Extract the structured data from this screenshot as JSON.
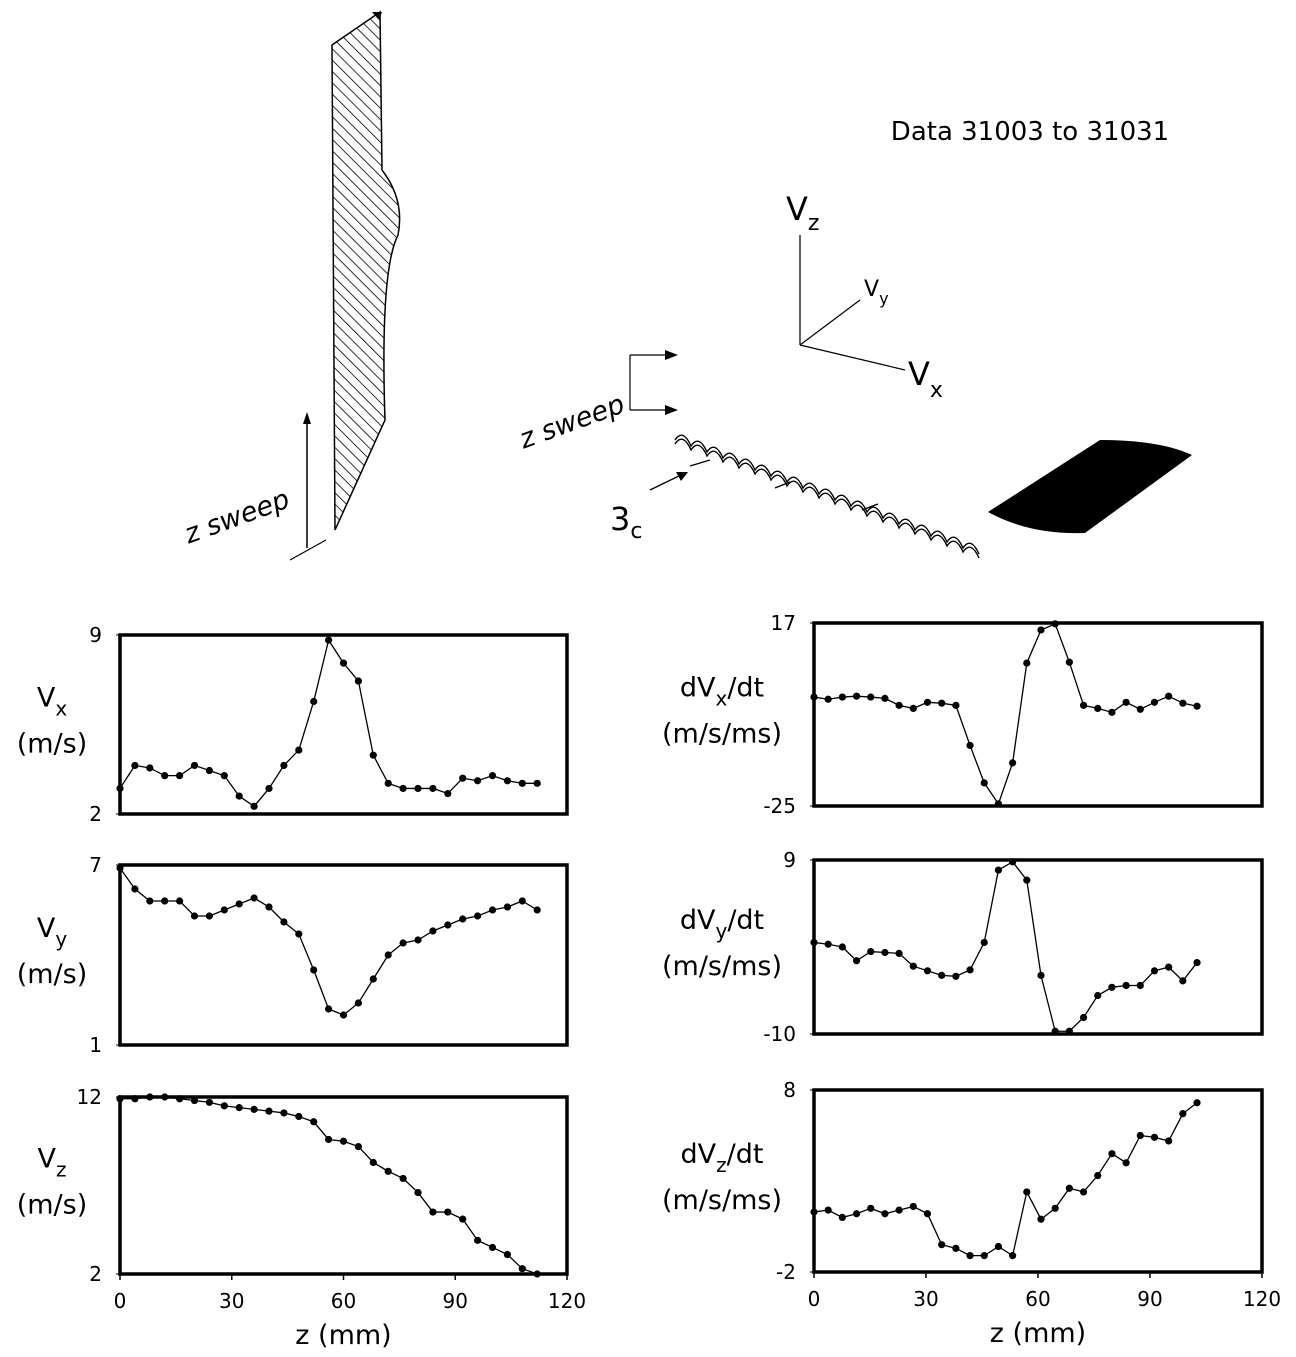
{
  "diagram": {
    "left_label": "z sweep",
    "right_label": "z sweep",
    "wake_label": "3",
    "wake_subscript": "c",
    "data_label": "Data 31003 to 31031",
    "axes": [
      {
        "base": "V",
        "sub": "z"
      },
      {
        "base": "V",
        "sub": "y"
      },
      {
        "base": "V",
        "sub": "x"
      }
    ]
  },
  "chart_data": [
    {
      "type": "line",
      "ylabel_parts": [
        "V",
        "x"
      ],
      "yunit": "(m/s)",
      "x": [
        0,
        4,
        8,
        12,
        16,
        20,
        24,
        28,
        32,
        36,
        40,
        44,
        48,
        52,
        56,
        60,
        64,
        68,
        72,
        76,
        80,
        84,
        88,
        92,
        96,
        100,
        104,
        108,
        112
      ],
      "values": [
        3.0,
        3.9,
        3.8,
        3.5,
        3.5,
        3.9,
        3.7,
        3.5,
        2.7,
        2.3,
        3.0,
        3.9,
        4.5,
        6.4,
        8.8,
        7.9,
        7.2,
        4.3,
        3.2,
        3.0,
        3.0,
        3.0,
        2.8,
        3.4,
        3.3,
        3.5,
        3.3,
        3.2,
        3.2
      ],
      "xlim": [
        0,
        120
      ],
      "ylim": [
        2,
        9
      ],
      "yticks": [
        2,
        9
      ]
    },
    {
      "type": "line",
      "ylabel_parts": [
        "V",
        "y"
      ],
      "yunit": "(m/s)",
      "x": [
        0,
        4,
        8,
        12,
        16,
        20,
        24,
        28,
        32,
        36,
        40,
        44,
        48,
        52,
        56,
        60,
        64,
        68,
        72,
        76,
        80,
        84,
        88,
        92,
        96,
        100,
        104,
        108,
        112
      ],
      "values": [
        6.9,
        6.2,
        5.8,
        5.8,
        5.8,
        5.3,
        5.3,
        5.5,
        5.7,
        5.9,
        5.6,
        5.1,
        4.7,
        3.5,
        2.2,
        2.0,
        2.4,
        3.2,
        4.0,
        4.4,
        4.5,
        4.8,
        5.0,
        5.2,
        5.3,
        5.5,
        5.6,
        5.8,
        5.5
      ],
      "xlim": [
        0,
        120
      ],
      "ylim": [
        1,
        7
      ],
      "yticks": [
        1,
        7
      ]
    },
    {
      "type": "line",
      "ylabel_parts": [
        "V",
        "z"
      ],
      "yunit": "(m/s)",
      "x": [
        0,
        4,
        8,
        12,
        16,
        20,
        24,
        28,
        32,
        36,
        40,
        44,
        48,
        52,
        56,
        60,
        64,
        68,
        72,
        76,
        80,
        84,
        88,
        92,
        96,
        100,
        104,
        108,
        112
      ],
      "values": [
        11.9,
        11.9,
        12.0,
        12.0,
        11.9,
        11.8,
        11.7,
        11.5,
        11.4,
        11.3,
        11.2,
        11.1,
        10.9,
        10.6,
        9.6,
        9.5,
        9.2,
        8.3,
        7.8,
        7.4,
        6.6,
        5.5,
        5.5,
        5.1,
        3.9,
        3.5,
        3.1,
        2.3,
        2.0
      ],
      "xlim": [
        0,
        120
      ],
      "ylim": [
        2,
        12
      ],
      "yticks": [
        2,
        12
      ],
      "xticks": [
        0,
        30,
        60,
        90,
        120
      ],
      "xlabel": "z (mm)"
    },
    {
      "type": "line",
      "ylabel_parts": [
        "dV",
        "x",
        "/dt"
      ],
      "yunit": "(m/s/ms)",
      "x": [
        0,
        3.8,
        7.6,
        11.4,
        15.2,
        19,
        22.8,
        26.6,
        30.4,
        34.2,
        38,
        41.8,
        45.6,
        49.4,
        53.2,
        57,
        60.8,
        64.6,
        68.4,
        72.2,
        76,
        79.8,
        83.6,
        87.4,
        91.2,
        95,
        98.8,
        102.6
      ],
      "values": [
        0.0,
        -0.5,
        0.0,
        0.2,
        0.0,
        -0.3,
        -1.9,
        -2.6,
        -1.2,
        -1.4,
        -1.9,
        -11.1,
        -19.7,
        -24.5,
        -15.1,
        7.8,
        15.4,
        16.8,
        8.0,
        -1.9,
        -2.6,
        -3.5,
        -1.2,
        -2.8,
        -1.2,
        0.2,
        -1.4,
        -2.1
      ],
      "xlim": [
        0,
        120
      ],
      "ylim": [
        -25,
        17
      ],
      "yticks": [
        -25,
        17
      ]
    },
    {
      "type": "line",
      "ylabel_parts": [
        "dV",
        "y",
        "/dt"
      ],
      "yunit": "(m/s/ms)",
      "x": [
        0,
        3.8,
        7.6,
        11.4,
        15.2,
        19,
        22.8,
        26.6,
        30.4,
        34.2,
        38,
        41.8,
        45.6,
        49.4,
        53.2,
        57,
        60.8,
        64.6,
        68.4,
        72.2,
        76,
        79.8,
        83.6,
        87.4,
        91.2,
        95,
        98.8,
        102.6
      ],
      "values": [
        0.0,
        -0.2,
        -0.5,
        -2.0,
        -1.0,
        -1.1,
        -1.2,
        -2.6,
        -3.1,
        -3.6,
        -3.7,
        -3.0,
        0.0,
        7.9,
        8.8,
        6.8,
        -3.6,
        -9.7,
        -9.7,
        -8.2,
        -5.8,
        -4.9,
        -4.7,
        -4.7,
        -3.1,
        -2.7,
        -4.2,
        -2.2
      ],
      "xlim": [
        0,
        120
      ],
      "ylim": [
        -10,
        9
      ],
      "yticks": [
        -10,
        9
      ]
    },
    {
      "type": "line",
      "ylabel_parts": [
        "dV",
        "z",
        "/dt"
      ],
      "yunit": "(m/s/ms)",
      "x": [
        0,
        3.8,
        7.6,
        11.4,
        15.2,
        19,
        22.8,
        26.6,
        30.4,
        34.2,
        38,
        41.8,
        45.6,
        49.4,
        53.2,
        57,
        60.8,
        64.6,
        68.4,
        72.2,
        76,
        79.8,
        83.6,
        87.4,
        91.2,
        95,
        98.8,
        102.6
      ],
      "values": [
        1.3,
        1.4,
        1.0,
        1.2,
        1.5,
        1.2,
        1.4,
        1.6,
        1.2,
        -0.5,
        -0.7,
        -1.1,
        -1.1,
        -0.6,
        -1.1,
        2.4,
        0.9,
        1.5,
        2.6,
        2.4,
        3.3,
        4.5,
        4.0,
        5.5,
        5.4,
        5.2,
        6.7,
        7.3
      ],
      "xlim": [
        0,
        120
      ],
      "ylim": [
        -2,
        8
      ],
      "yticks": [
        -2,
        8
      ],
      "xticks": [
        0,
        30,
        60,
        90,
        120
      ],
      "xlabel": "z (mm)"
    }
  ]
}
